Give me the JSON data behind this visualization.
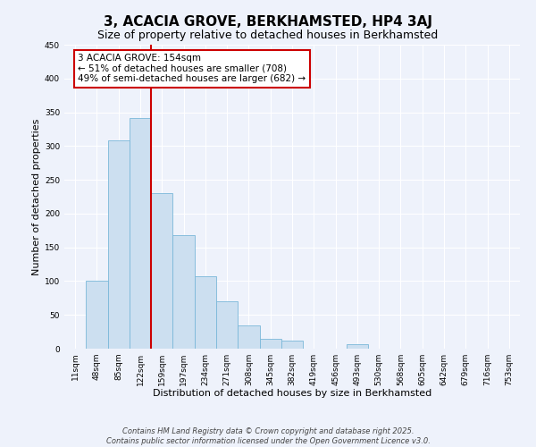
{
  "title": "3, ACACIA GROVE, BERKHAMSTED, HP4 3AJ",
  "subtitle": "Size of property relative to detached houses in Berkhamsted",
  "xlabel": "Distribution of detached houses by size in Berkhamsted",
  "ylabel": "Number of detached properties",
  "bin_labels": [
    "11sqm",
    "48sqm",
    "85sqm",
    "122sqm",
    "159sqm",
    "197sqm",
    "234sqm",
    "271sqm",
    "308sqm",
    "345sqm",
    "382sqm",
    "419sqm",
    "456sqm",
    "493sqm",
    "530sqm",
    "568sqm",
    "605sqm",
    "642sqm",
    "679sqm",
    "716sqm",
    "753sqm"
  ],
  "bar_values": [
    0,
    100,
    308,
    341,
    230,
    168,
    107,
    70,
    35,
    14,
    12,
    0,
    0,
    6,
    0,
    0,
    0,
    0,
    0,
    0,
    0
  ],
  "bar_color": "#ccdff0",
  "bar_edge_color": "#7ab8d9",
  "ylim": [
    0,
    450
  ],
  "yticks": [
    0,
    50,
    100,
    150,
    200,
    250,
    300,
    350,
    400,
    450
  ],
  "vline_color": "#cc0000",
  "vline_x_index": 3.5,
  "annotation_line1": "3 ACACIA GROVE: 154sqm",
  "annotation_line2": "← 51% of detached houses are smaller (708)",
  "annotation_line3": "49% of semi-detached houses are larger (682) →",
  "footer_line1": "Contains HM Land Registry data © Crown copyright and database right 2025.",
  "footer_line2": "Contains public sector information licensed under the Open Government Licence v3.0.",
  "background_color": "#eef2fb",
  "grid_color": "#ffffff",
  "title_fontsize": 11,
  "subtitle_fontsize": 9,
  "axis_label_fontsize": 8,
  "tick_fontsize": 6.5,
  "annotation_fontsize": 7.5,
  "footer_fontsize": 6
}
